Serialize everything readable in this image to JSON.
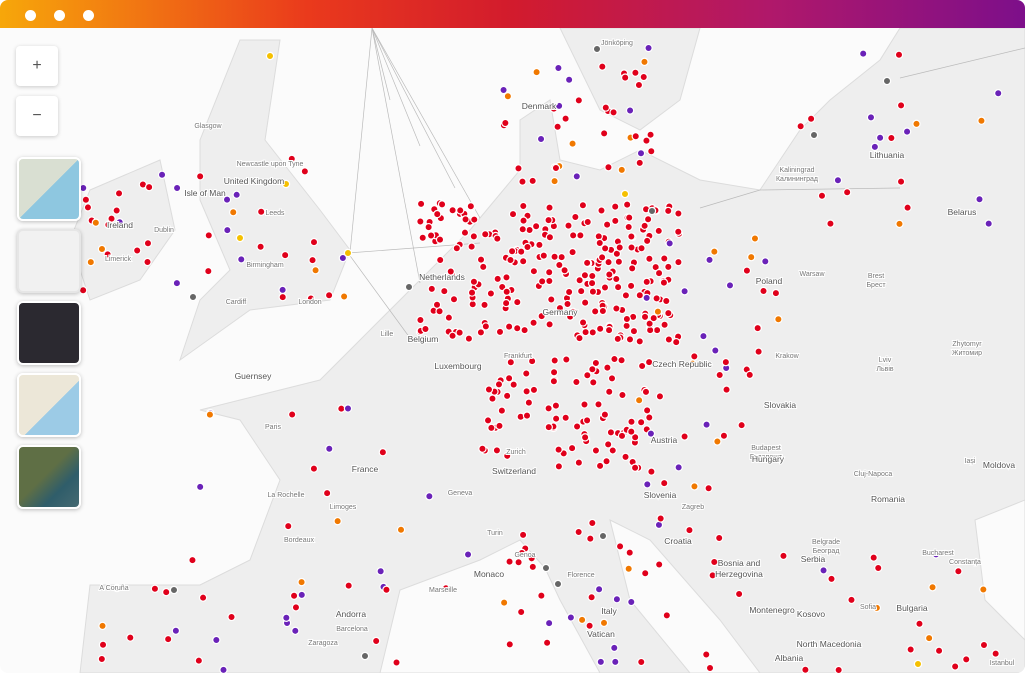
{
  "window": {
    "title_bar": true
  },
  "controls": {
    "zoom_in": "+",
    "zoom_out": "−"
  },
  "labels": [
    "Ireland",
    "Isle of Man",
    "United Kingdom",
    "Dublin",
    "Limerick",
    "Glasgow",
    "Newcastle upon Tyne",
    "Leeds",
    "Birmingham",
    "London",
    "Cardiff",
    "Denmark",
    "Jönköping",
    "Lithuania",
    "Kaliningrad",
    "Калининград",
    "Belarus",
    "Poland",
    "Warsaw",
    "Brest",
    "Брест",
    "Krakow",
    "Lviv",
    "Львів",
    "Zhytomyr",
    "Житомир",
    "Netherlands",
    "Belgium",
    "Lille",
    "Luxembourg",
    "Germany",
    "Frankfurt",
    "Czech Republic",
    "Slovakia",
    "Austria",
    "Budapest",
    "Будапешт",
    "Hungary",
    "Moldova",
    "Iași",
    "Cluj-Napoca",
    "Romania",
    "Switzerland",
    "Zurich",
    "France",
    "Paris",
    "Guernsey",
    "La Rochelle",
    "Limoges",
    "Bordeaux",
    "Geneva",
    "Marseille",
    "Monaco",
    "Andorra",
    "Zaragoza",
    "Barcelona",
    "A Coruña",
    "Slovenia",
    "Zagreb",
    "Croatia",
    "Bosnia and",
    "Herzegovina",
    "Serbia",
    "Belgrade",
    "Београд",
    "Montenegro",
    "Kosovo",
    "Albania",
    "North Macedonia",
    "Bulgaria",
    "Sofia",
    "Bucharest",
    "Constanța",
    "Istanbul",
    "Italy",
    "Florence",
    "Genoa",
    "Turin",
    "Vatican"
  ]
}
